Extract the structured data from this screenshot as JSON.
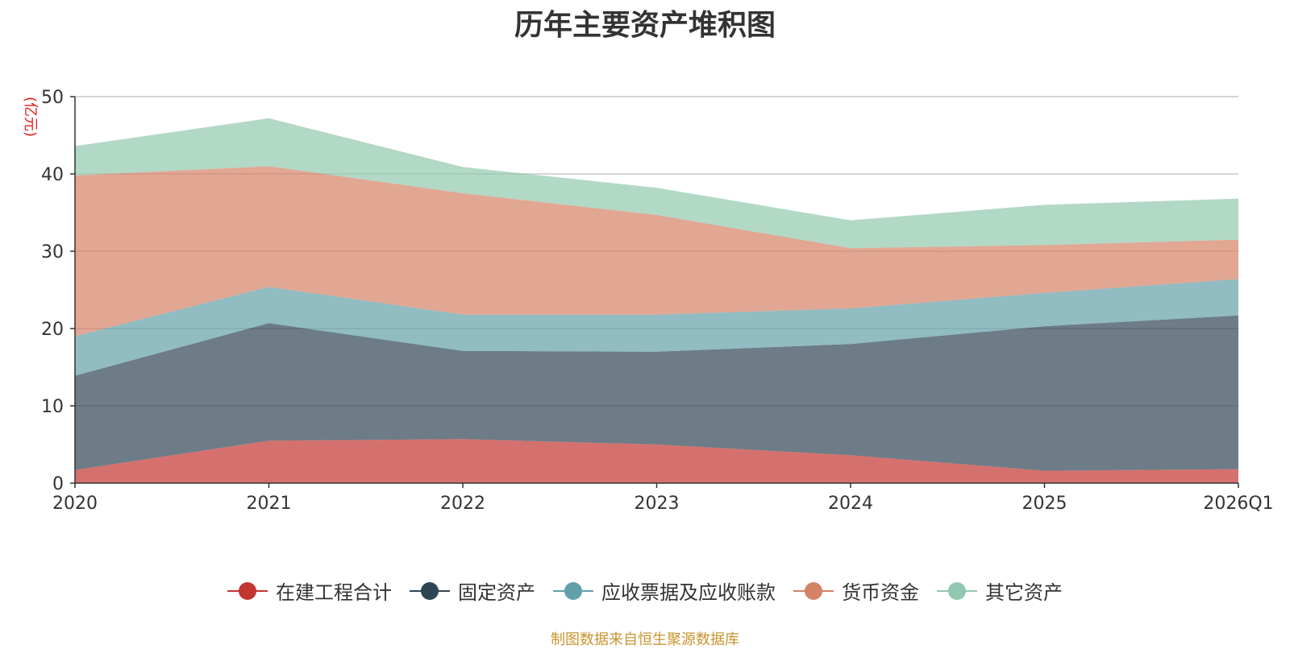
{
  "chart_data": {
    "type": "area",
    "stacked": true,
    "title": "历年主要资产堆积图",
    "ylabel": "(亿元)",
    "xlabel": "",
    "categories": [
      "2020",
      "2021",
      "2022",
      "2023",
      "2024",
      "2025",
      "2026Q1"
    ],
    "ylim": [
      0,
      50
    ],
    "yticks": [
      0,
      10,
      20,
      30,
      40,
      50
    ],
    "grid": true,
    "legend_position": "bottom",
    "series": [
      {
        "name": "在建工程合计",
        "color": "#c23531",
        "values": [
          1.7,
          5.5,
          5.7,
          5.0,
          3.6,
          1.6,
          1.8
        ]
      },
      {
        "name": "固定资产",
        "color": "#2f4554",
        "values": [
          12.2,
          15.2,
          11.4,
          12.0,
          14.4,
          18.7,
          19.9
        ]
      },
      {
        "name": "应收票据及应收账款",
        "color": "#61a0a8",
        "values": [
          5.1,
          4.7,
          4.7,
          4.8,
          4.6,
          4.3,
          4.7
        ]
      },
      {
        "name": "货币资金",
        "color": "#d48265",
        "values": [
          20.8,
          15.6,
          15.7,
          12.9,
          7.8,
          6.2,
          5.1
        ]
      },
      {
        "name": "其它资产",
        "color": "#91c7ae",
        "values": [
          3.8,
          6.2,
          3.4,
          3.5,
          3.6,
          5.2,
          5.3
        ]
      }
    ]
  },
  "footer": {
    "source": "制图数据来自恒生聚源数据库"
  }
}
